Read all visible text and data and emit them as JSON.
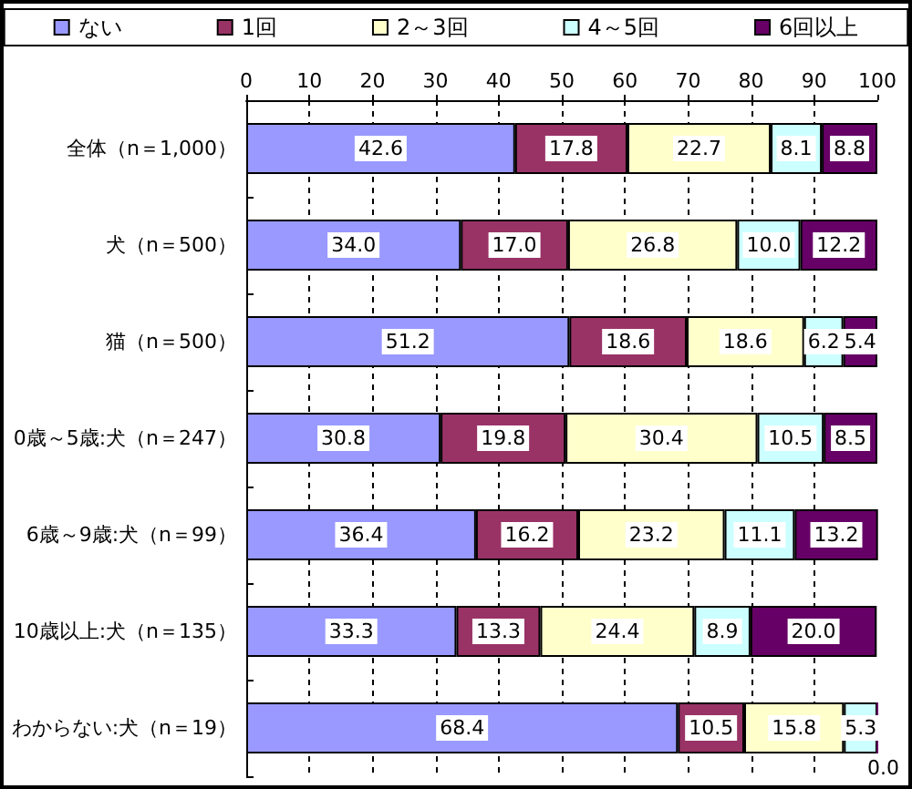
{
  "chart_data": {
    "type": "bar",
    "orientation": "horizontal",
    "stacked": true,
    "categories": [
      "全体（n＝1,000）",
      "犬（n＝500）",
      "猫（n＝500）",
      "0歳～5歳:犬（n＝247）",
      "6歳～9歳:犬（n＝99）",
      "10歳以上:犬（n＝135）",
      "わからない:犬（n＝19）"
    ],
    "series": [
      {
        "name": "ない",
        "color": "#9999ff",
        "values": [
          42.6,
          34.0,
          51.2,
          30.8,
          36.4,
          33.3,
          68.4
        ],
        "value_labels": [
          "42.6",
          "34.0",
          "51.2",
          "30.8",
          "36.4",
          "33.3",
          "68.4"
        ]
      },
      {
        "name": "1回",
        "color": "#993366",
        "values": [
          17.8,
          17.0,
          18.6,
          19.8,
          16.2,
          13.3,
          10.5
        ],
        "value_labels": [
          "17.8",
          "17.0",
          "18.6",
          "19.8",
          "16.2",
          "13.3",
          "10.5"
        ]
      },
      {
        "name": "2～3回",
        "color": "#ffffcc",
        "values": [
          22.7,
          26.8,
          18.6,
          30.4,
          23.2,
          24.4,
          15.8
        ],
        "value_labels": [
          "22.7",
          "26.8",
          "18.6",
          "30.4",
          "23.2",
          "24.4",
          "15.8"
        ]
      },
      {
        "name": "4～5回",
        "color": "#ccffff",
        "values": [
          8.1,
          10.0,
          6.2,
          10.5,
          11.1,
          8.9,
          5.3
        ],
        "value_labels": [
          "8.1",
          "10.0",
          "6.2",
          "10.5",
          "11.1",
          "8.9",
          "5.3"
        ]
      },
      {
        "name": "6回以上",
        "color": "#660066",
        "values": [
          8.8,
          12.2,
          5.4,
          8.5,
          13.2,
          20.0,
          0.0
        ],
        "value_labels": [
          "8.8",
          "12.2",
          "5.4",
          "8.5",
          "13.2",
          "20.0",
          "0.0"
        ]
      }
    ],
    "xlim": [
      0,
      100
    ],
    "xticks": [
      0,
      10,
      20,
      30,
      40,
      50,
      60,
      70,
      80,
      90,
      100
    ],
    "grid": "x",
    "legend": "top"
  }
}
